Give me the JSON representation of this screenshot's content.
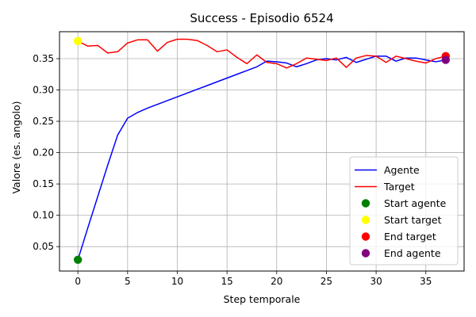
{
  "chart_data": {
    "type": "line",
    "title": "Success - Episodio 6524",
    "xlabel": "Step temporale",
    "ylabel": "Valore (es. angolo)",
    "xlim": [
      -1.85,
      38.85
    ],
    "ylim": [
      0.011,
      0.393
    ],
    "xticks": [
      0,
      5,
      10,
      15,
      20,
      25,
      30,
      35
    ],
    "yticks": [
      0.05,
      0.1,
      0.15,
      0.2,
      0.25,
      0.3,
      0.35
    ],
    "ytick_labels": [
      "0.05",
      "0.10",
      "0.15",
      "0.20",
      "0.25",
      "0.30",
      "0.35"
    ],
    "grid": true,
    "legend_position": "lower-right",
    "series": [
      {
        "name": "Agente",
        "color": "#0000ff",
        "x": [
          0,
          1,
          2,
          3,
          4,
          5,
          6,
          7,
          8,
          9,
          10,
          11,
          12,
          13,
          14,
          15,
          16,
          17,
          18,
          19,
          20,
          21,
          22,
          23,
          24,
          25,
          26,
          27,
          28,
          29,
          30,
          31,
          32,
          33,
          34,
          35,
          36,
          37
        ],
        "values": [
          0.029,
          0.08,
          0.13,
          0.18,
          0.228,
          0.255,
          0.264,
          0.271,
          0.277,
          0.283,
          0.289,
          0.295,
          0.301,
          0.307,
          0.313,
          0.319,
          0.325,
          0.331,
          0.337,
          0.346,
          0.345,
          0.343,
          0.337,
          0.342,
          0.348,
          0.35,
          0.348,
          0.352,
          0.344,
          0.349,
          0.354,
          0.354,
          0.346,
          0.351,
          0.351,
          0.348,
          0.345,
          0.348
        ]
      },
      {
        "name": "Target",
        "color": "#ff0000",
        "x": [
          0,
          1,
          2,
          3,
          4,
          5,
          6,
          7,
          8,
          9,
          10,
          11,
          12,
          13,
          14,
          15,
          16,
          17,
          18,
          19,
          20,
          21,
          22,
          23,
          24,
          25,
          26,
          27,
          28,
          29,
          30,
          31,
          32,
          33,
          34,
          35,
          36,
          37
        ],
        "values": [
          0.378,
          0.37,
          0.371,
          0.359,
          0.361,
          0.375,
          0.38,
          0.38,
          0.362,
          0.376,
          0.381,
          0.381,
          0.379,
          0.371,
          0.361,
          0.364,
          0.352,
          0.342,
          0.356,
          0.344,
          0.342,
          0.335,
          0.342,
          0.351,
          0.349,
          0.347,
          0.351,
          0.336,
          0.351,
          0.355,
          0.354,
          0.344,
          0.354,
          0.35,
          0.346,
          0.343,
          0.35,
          0.354
        ]
      }
    ],
    "markers": [
      {
        "name": "Start agente",
        "x": 0,
        "y": 0.029,
        "color": "#008000"
      },
      {
        "name": "Start target",
        "x": 0,
        "y": 0.378,
        "color": "#ffff00"
      },
      {
        "name": "End target",
        "x": 37,
        "y": 0.354,
        "color": "#ff0000"
      },
      {
        "name": "End agente",
        "x": 37,
        "y": 0.348,
        "color": "#800080"
      }
    ]
  }
}
